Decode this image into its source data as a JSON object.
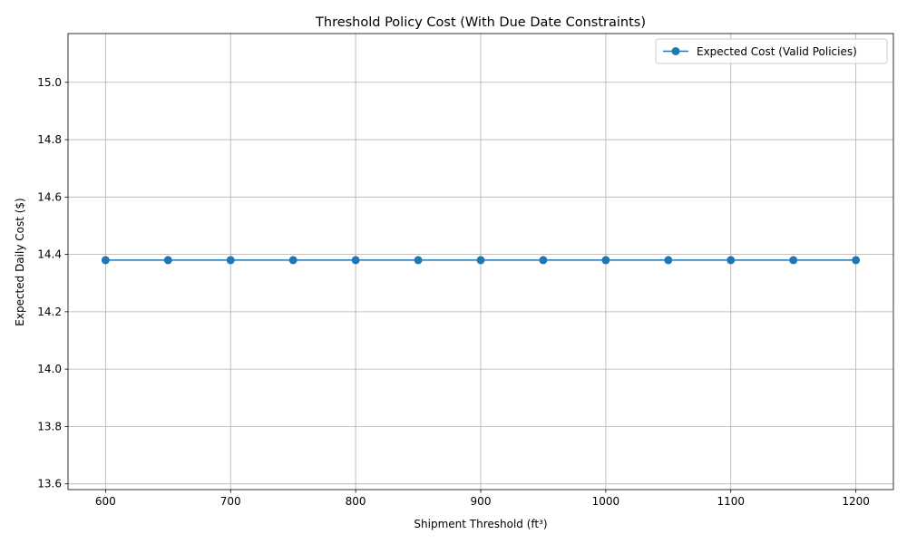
{
  "chart_data": {
    "type": "line",
    "title": "Threshold Policy Cost (With Due Date Constraints)",
    "xlabel": "Shipment Threshold (ft³)",
    "ylabel": "Expected Daily Cost ($)",
    "x": [
      600,
      650,
      700,
      750,
      800,
      850,
      900,
      950,
      1000,
      1050,
      1100,
      1150,
      1200
    ],
    "series": [
      {
        "name": "Expected Cost (Valid Policies)",
        "values": [
          14.38,
          14.38,
          14.38,
          14.38,
          14.38,
          14.38,
          14.38,
          14.38,
          14.38,
          14.38,
          14.38,
          14.38,
          14.38
        ],
        "color": "#1f77b4",
        "marker": "circle"
      }
    ],
    "xlim": [
      570,
      1230
    ],
    "ylim": [
      13.58,
      15.17
    ],
    "xticks": [
      600,
      700,
      800,
      900,
      1000,
      1100,
      1200
    ],
    "yticks": [
      13.6,
      13.8,
      14.0,
      14.2,
      14.4,
      14.6,
      14.8,
      15.0
    ],
    "ytick_labels": [
      "13.6",
      "13.8",
      "14.0",
      "14.2",
      "14.4",
      "14.6",
      "14.8",
      "15.0"
    ],
    "grid": true,
    "legend_position": "top-right"
  }
}
